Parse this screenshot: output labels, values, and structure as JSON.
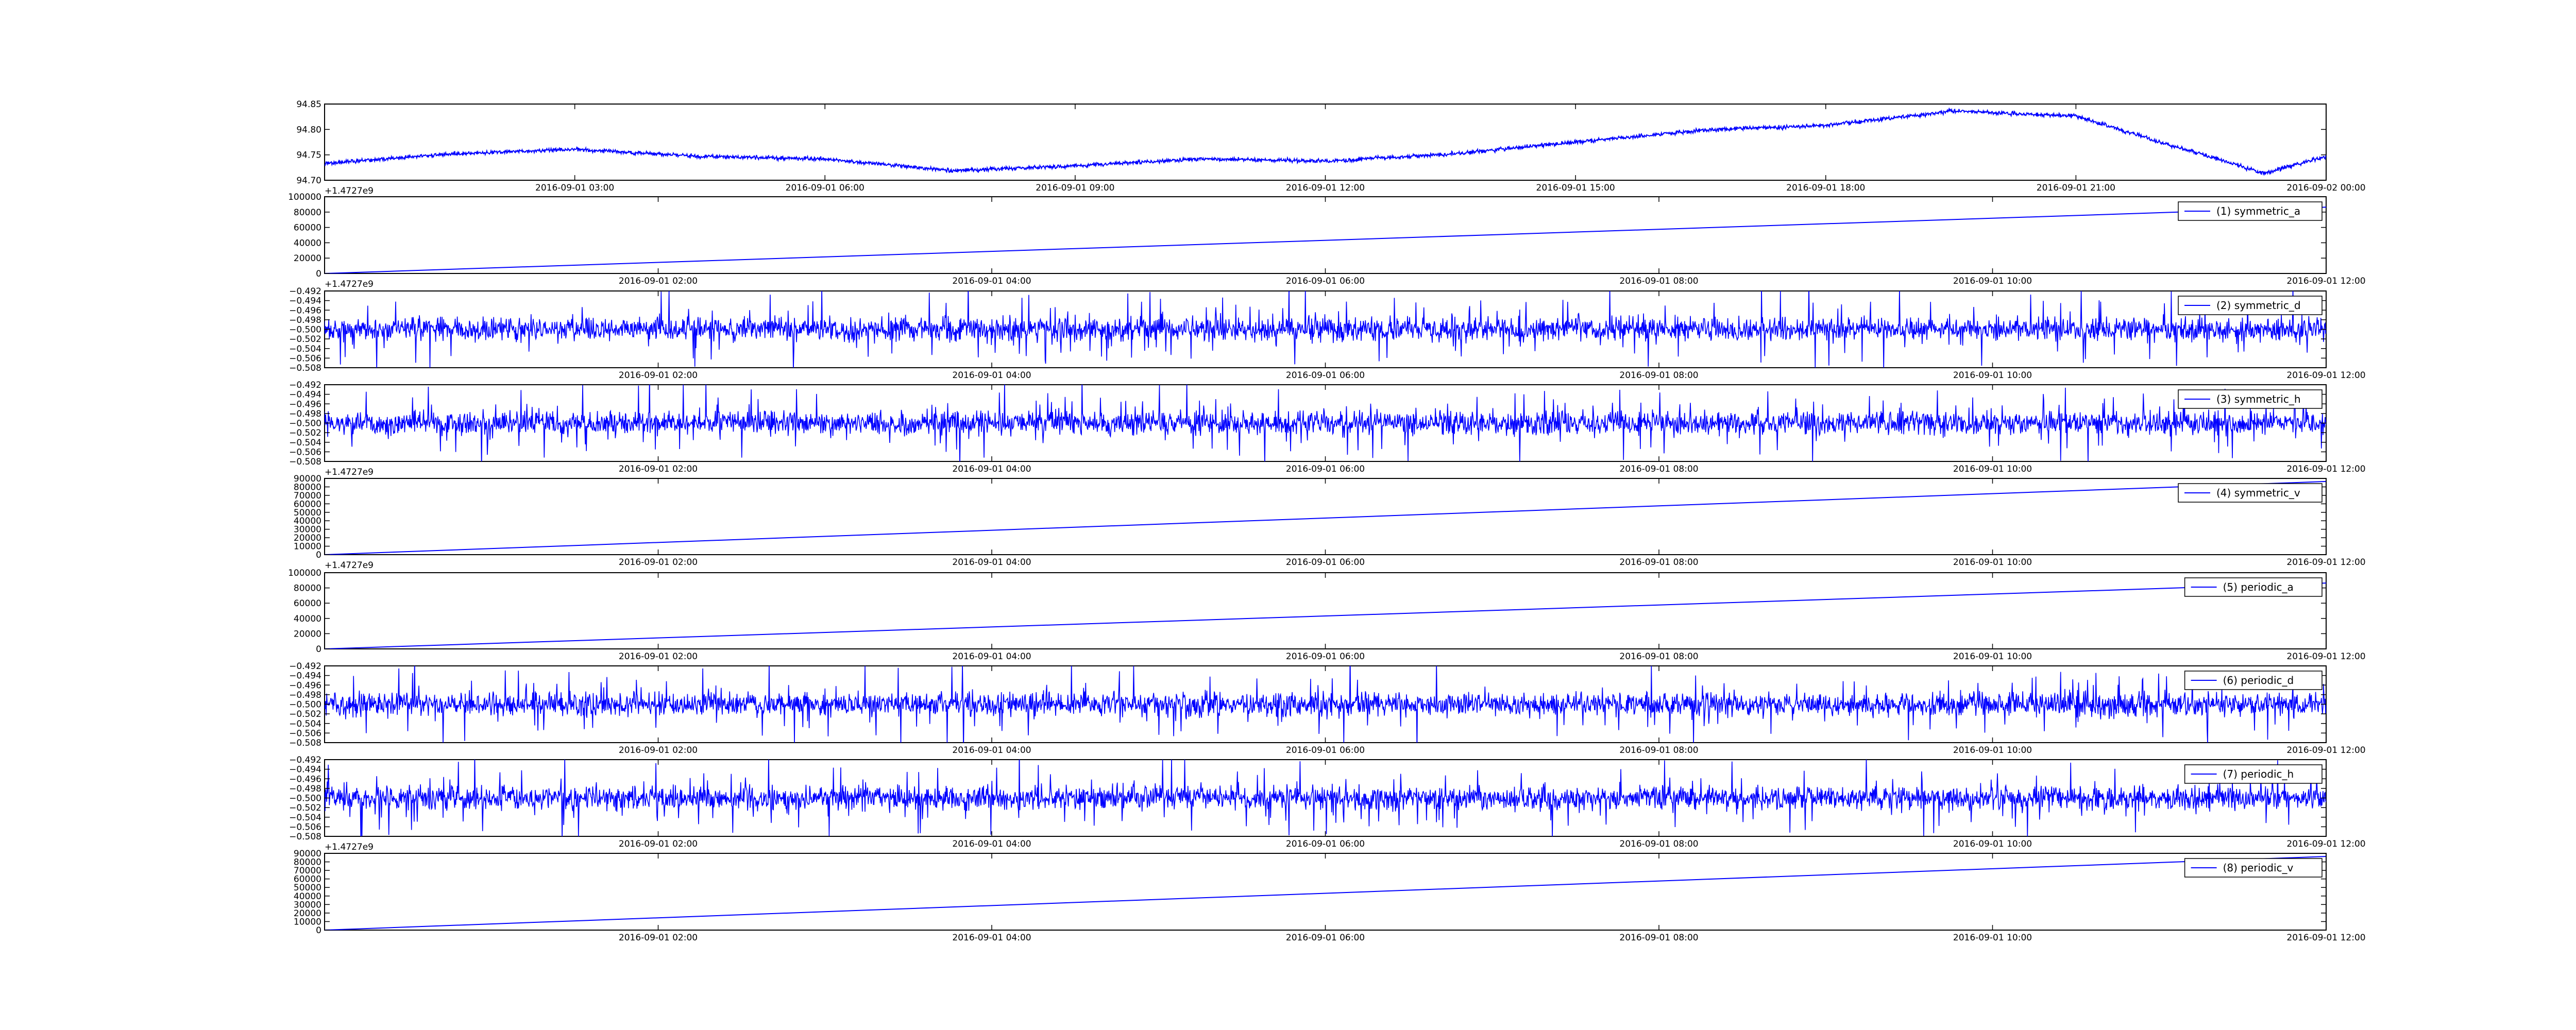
{
  "chart_data": [
    {
      "type": "line",
      "label": "",
      "x": [
        "2016-09-01 00:00",
        "2016-09-01 01:30",
        "2016-09-01 03:00",
        "2016-09-01 04:30",
        "2016-09-01 06:00",
        "2016-09-01 07:30",
        "2016-09-01 09:00",
        "2016-09-01 10:30",
        "2016-09-01 12:00",
        "2016-09-01 13:30",
        "2016-09-01 15:00",
        "2016-09-01 16:30",
        "2016-09-01 18:00",
        "2016-09-01 19:30",
        "2016-09-01 21:00",
        "2016-09-01 22:00",
        "2016-09-01 22:30",
        "2016-09-01 23:15",
        "2016-09-02 00:00"
      ],
      "y": [
        94.725,
        94.745,
        94.755,
        94.74,
        94.735,
        94.71,
        94.72,
        94.735,
        94.73,
        94.745,
        94.77,
        94.795,
        94.805,
        94.835,
        94.825,
        94.77,
        94.745,
        94.705,
        94.74
      ],
      "noise": 0.004,
      "x_ticks": [
        "2016-09-01 03:00",
        "2016-09-01 06:00",
        "2016-09-01 09:00",
        "2016-09-01 12:00",
        "2016-09-01 15:00",
        "2016-09-01 18:00",
        "2016-09-01 21:00",
        "2016-09-02 00:00"
      ],
      "x_range": [
        "2016-09-01 00:00",
        "2016-09-02 00:00"
      ],
      "y_ticks": [
        "94.70",
        "94.75",
        "94.80",
        "94.85"
      ],
      "y_range": [
        94.69,
        94.85
      ],
      "offset_label": "+1.4727e9",
      "grid": false,
      "legend": null
    },
    {
      "type": "line",
      "label": "(1) symmetric_a",
      "x": [
        "2016-09-01 00:00",
        "2016-09-01 12:00"
      ],
      "y": [
        0,
        86400
      ],
      "x_ticks": [
        "2016-09-01 02:00",
        "2016-09-01 04:00",
        "2016-09-01 06:00",
        "2016-09-01 08:00",
        "2016-09-01 10:00",
        "2016-09-01 12:00"
      ],
      "x_range": [
        "2016-09-01 00:00",
        "2016-09-01 12:00"
      ],
      "y_ticks": [
        "0",
        "20000",
        "40000",
        "60000",
        "80000",
        "100000"
      ],
      "y_range": [
        0,
        100000
      ],
      "offset_label": "+1.4727e9",
      "grid": false,
      "legend": "top-right"
    },
    {
      "type": "line",
      "label": "(2) symmetric_d",
      "center": -0.5,
      "noise": 0.003,
      "x_ticks": [
        "2016-09-01 02:00",
        "2016-09-01 04:00",
        "2016-09-01 06:00",
        "2016-09-01 08:00",
        "2016-09-01 10:00",
        "2016-09-01 12:00"
      ],
      "x_range": [
        "2016-09-01 00:00",
        "2016-09-01 12:00"
      ],
      "y_ticks": [
        "−0.508",
        "−0.506",
        "−0.504",
        "−0.502",
        "−0.500",
        "−0.498",
        "−0.496",
        "−0.494",
        "−0.492"
      ],
      "y_range": [
        -0.508,
        -0.492
      ],
      "offset_label": "",
      "grid": false,
      "legend": "top-right"
    },
    {
      "type": "line",
      "label": "(3) symmetric_h",
      "center": -0.5,
      "noise": 0.003,
      "x_ticks": [
        "2016-09-01 02:00",
        "2016-09-01 04:00",
        "2016-09-01 06:00",
        "2016-09-01 08:00",
        "2016-09-01 10:00",
        "2016-09-01 12:00"
      ],
      "x_range": [
        "2016-09-01 00:00",
        "2016-09-01 12:00"
      ],
      "y_ticks": [
        "−0.508",
        "−0.506",
        "−0.504",
        "−0.502",
        "−0.500",
        "−0.498",
        "−0.496",
        "−0.494",
        "−0.492"
      ],
      "y_range": [
        -0.508,
        -0.492
      ],
      "offset_label": "+1.4727e9",
      "grid": false,
      "legend": "top-right"
    },
    {
      "type": "line",
      "label": "(4) symmetric_v",
      "x": [
        "2016-09-01 00:00",
        "2016-09-01 12:00"
      ],
      "y": [
        0,
        86400
      ],
      "x_ticks": [
        "2016-09-01 02:00",
        "2016-09-01 04:00",
        "2016-09-01 06:00",
        "2016-09-01 08:00",
        "2016-09-01 10:00",
        "2016-09-01 12:00"
      ],
      "x_range": [
        "2016-09-01 00:00",
        "2016-09-01 12:00"
      ],
      "y_ticks": [
        "0",
        "10000",
        "20000",
        "30000",
        "40000",
        "50000",
        "60000",
        "70000",
        "80000",
        "90000"
      ],
      "y_range": [
        0,
        90000
      ],
      "offset_label": "+1.4727e9",
      "grid": false,
      "legend": "top-right"
    },
    {
      "type": "line",
      "label": "(5) periodic_a",
      "x": [
        "2016-09-01 00:00",
        "2016-09-01 12:00"
      ],
      "y": [
        0,
        86400
      ],
      "x_ticks": [
        "2016-09-01 02:00",
        "2016-09-01 04:00",
        "2016-09-01 06:00",
        "2016-09-01 08:00",
        "2016-09-01 10:00",
        "2016-09-01 12:00"
      ],
      "x_range": [
        "2016-09-01 00:00",
        "2016-09-01 12:00"
      ],
      "y_ticks": [
        "0",
        "20000",
        "40000",
        "60000",
        "80000",
        "100000"
      ],
      "y_range": [
        0,
        100000
      ],
      "offset_label": "",
      "grid": false,
      "legend": "top-right"
    },
    {
      "type": "line",
      "label": "(6) periodic_d",
      "center": -0.5,
      "noise": 0.003,
      "x_ticks": [
        "2016-09-01 02:00",
        "2016-09-01 04:00",
        "2016-09-01 06:00",
        "2016-09-01 08:00",
        "2016-09-01 10:00",
        "2016-09-01 12:00"
      ],
      "x_range": [
        "2016-09-01 00:00",
        "2016-09-01 12:00"
      ],
      "y_ticks": [
        "−0.508",
        "−0.506",
        "−0.504",
        "−0.502",
        "−0.500",
        "−0.498",
        "−0.496",
        "−0.494",
        "−0.492"
      ],
      "y_range": [
        -0.508,
        -0.492
      ],
      "offset_label": "",
      "grid": false,
      "legend": "top-right"
    },
    {
      "type": "line",
      "label": "(7) periodic_h",
      "center": -0.5,
      "noise": 0.003,
      "x_ticks": [
        "2016-09-01 02:00",
        "2016-09-01 04:00",
        "2016-09-01 06:00",
        "2016-09-01 08:00",
        "2016-09-01 10:00",
        "2016-09-01 12:00"
      ],
      "x_range": [
        "2016-09-01 00:00",
        "2016-09-01 12:00"
      ],
      "y_ticks": [
        "−0.508",
        "−0.506",
        "−0.504",
        "−0.502",
        "−0.500",
        "−0.498",
        "−0.496",
        "−0.494",
        "−0.492"
      ],
      "y_range": [
        -0.508,
        -0.492
      ],
      "offset_label": "+1.4727e9",
      "grid": false,
      "legend": "top-right"
    },
    {
      "type": "line",
      "label": "(8) periodic_v",
      "x": [
        "2016-09-01 00:00",
        "2016-09-01 12:00"
      ],
      "y": [
        0,
        86400
      ],
      "x_ticks": [
        "2016-09-01 02:00",
        "2016-09-01 04:00",
        "2016-09-01 06:00",
        "2016-09-01 08:00",
        "2016-09-01 10:00",
        "2016-09-01 12:00"
      ],
      "x_range": [
        "2016-09-01 00:00",
        "2016-09-01 12:00"
      ],
      "y_ticks": [
        "0",
        "10000",
        "20000",
        "30000",
        "40000",
        "50000",
        "60000",
        "70000",
        "80000",
        "90000"
      ],
      "y_range": [
        0,
        90000
      ],
      "offset_label": "",
      "grid": false,
      "legend": "top-right"
    }
  ],
  "colors": {
    "line": "#0000ff",
    "axes": "#000000",
    "background": "#ffffff"
  }
}
